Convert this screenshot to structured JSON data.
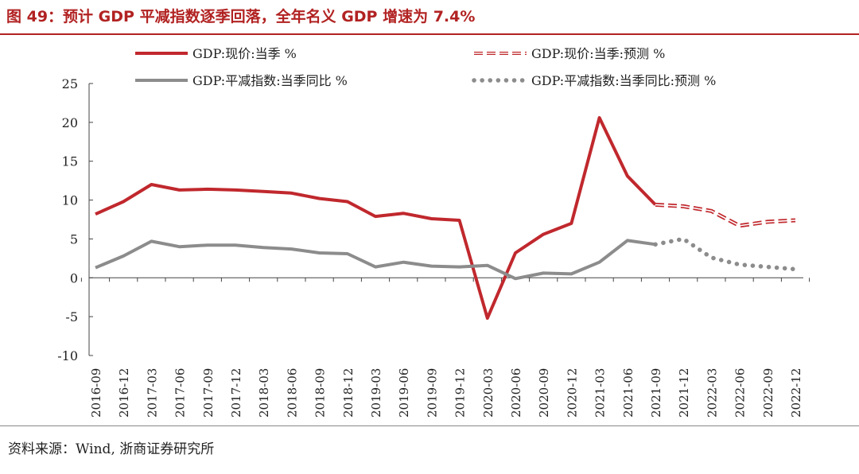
{
  "title": "图 49：预计 GDP 平减指数逐季回落，全年名义 GDP 增速为 7.4%",
  "source": "资料来源：Wind, 浙商证券研究所",
  "chart_data": {
    "type": "line",
    "categories": [
      "2016-09",
      "2016-12",
      "2017-03",
      "2017-06",
      "2017-09",
      "2017-12",
      "2018-03",
      "2018-06",
      "2018-09",
      "2018-12",
      "2019-03",
      "2019-06",
      "2019-09",
      "2019-12",
      "2020-03",
      "2020-06",
      "2020-09",
      "2020-12",
      "2021-03",
      "2021-06",
      "2021-09",
      "2021-12",
      "2022-03",
      "2022-06",
      "2022-09",
      "2022-12"
    ],
    "ylim": [
      -10,
      25
    ],
    "yticks": [
      25,
      20,
      15,
      10,
      5,
      0,
      -5,
      -10
    ],
    "ytick_labels": [
      "25",
      "20",
      "15",
      "10",
      "5",
      "0",
      "-5",
      "-10"
    ],
    "series": [
      {
        "name": "GDP:现价:当季 %",
        "color": "#c0282d",
        "style": "solid",
        "values": [
          8.2,
          9.8,
          12.0,
          11.3,
          11.4,
          11.3,
          11.1,
          10.9,
          10.2,
          9.8,
          7.9,
          8.3,
          7.6,
          7.4,
          -5.2,
          3.2,
          5.6,
          7.0,
          20.6,
          13.1,
          9.4,
          null,
          null,
          null,
          null,
          null
        ]
      },
      {
        "name": "GDP:平减指数:当季同比 %",
        "color": "#8c8c8c",
        "style": "solid",
        "values": [
          1.3,
          2.8,
          4.7,
          4.0,
          4.2,
          4.2,
          3.9,
          3.7,
          3.2,
          3.1,
          1.4,
          2.0,
          1.5,
          1.4,
          1.6,
          -0.1,
          0.6,
          0.5,
          2.0,
          4.8,
          4.3,
          null,
          null,
          null,
          null,
          null
        ]
      },
      {
        "name": "GDP:现价:当季:预测 %",
        "color": "#c0282d",
        "style": "dashed",
        "values": [
          null,
          null,
          null,
          null,
          null,
          null,
          null,
          null,
          null,
          null,
          null,
          null,
          null,
          null,
          null,
          null,
          null,
          null,
          null,
          null,
          9.4,
          9.2,
          8.6,
          6.7,
          7.2,
          7.4
        ]
      },
      {
        "name": "GDP:平减指数:当季同比:预测 %",
        "color": "#8c8c8c",
        "style": "dotted",
        "values": [
          null,
          null,
          null,
          null,
          null,
          null,
          null,
          null,
          null,
          null,
          null,
          null,
          null,
          null,
          null,
          null,
          null,
          null,
          null,
          null,
          4.3,
          5.0,
          2.6,
          1.7,
          1.4,
          1.1
        ]
      }
    ],
    "legend": {
      "position": "top",
      "items": [
        "GDP:现价:当季 %",
        "GDP:现价:当季:预测 %",
        "GDP:平减指数:当季同比 %",
        "GDP:平减指数:当季同比:预测 %"
      ]
    }
  }
}
